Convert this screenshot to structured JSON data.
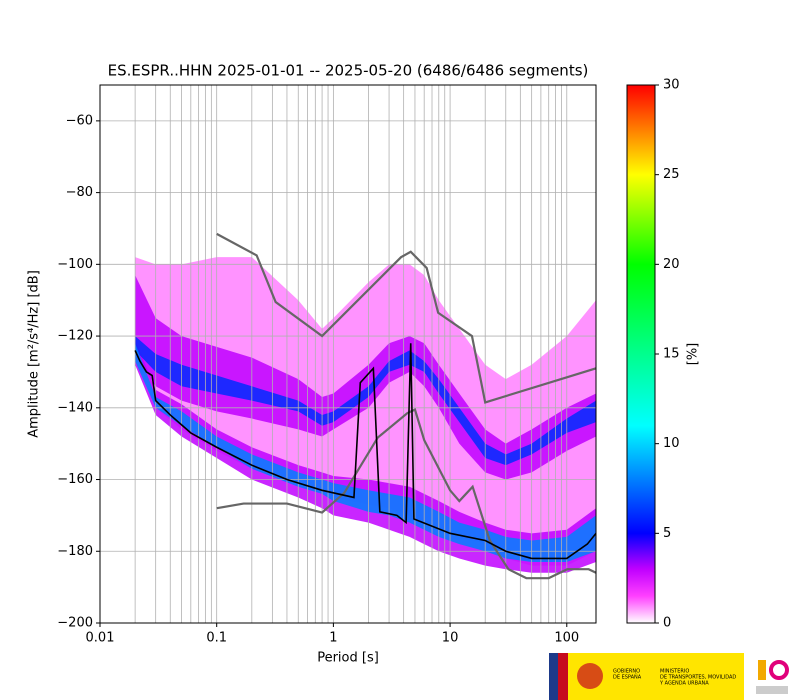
{
  "chart_data": {
    "type": "ppsd",
    "title": "ES.ESPR..HHN   2025-01-01 -- 2025-05-20  (6486/6486 segments)",
    "xlabel": "Period [s]",
    "ylabel": "Amplitude [m²/s⁴/Hz] [dB]",
    "colorbar_label": "[%]",
    "xscale": "log",
    "xlim": [
      0.01,
      178
    ],
    "xticks": [
      0.01,
      0.1,
      1,
      10,
      100
    ],
    "ylim": [
      -200,
      -50
    ],
    "yticks": [
      {
        "value": -200,
        "label": "−200"
      },
      {
        "value": -180,
        "label": "−180"
      },
      {
        "value": -160,
        "label": "−160"
      },
      {
        "value": -140,
        "label": "−140"
      },
      {
        "value": -120,
        "label": "−120"
      },
      {
        "value": -100,
        "label": "−100"
      },
      {
        "value": -80,
        "label": "−80"
      },
      {
        "value": -60,
        "label": "−60"
      }
    ],
    "grid": true,
    "minor_grid": true,
    "clim": [
      0,
      30
    ],
    "cticks": [
      0,
      5,
      10,
      15,
      20,
      25,
      30
    ],
    "colormap": [
      [
        0,
        "#ffffff"
      ],
      [
        1.5,
        "#ff40ff"
      ],
      [
        3,
        "#c000ff"
      ],
      [
        5,
        "#0000ff"
      ],
      [
        11,
        "#00ffff"
      ],
      [
        20,
        "#00ff00"
      ],
      [
        25,
        "#ffff00"
      ],
      [
        30,
        "#ff0000"
      ]
    ],
    "density_x": [
      0.02,
      0.03,
      0.05,
      0.1,
      0.2,
      0.5,
      0.8,
      1,
      2,
      3,
      4.5,
      6,
      8,
      12,
      20,
      30,
      50,
      100,
      178
    ],
    "density_bands": [
      {
        "value": 1,
        "high": [
          -98,
          -100,
          -100,
          -98,
          -98,
          -110,
          -118,
          -115,
          -105,
          -100,
          -100,
          -103,
          -110,
          -118,
          -128,
          -132,
          -128,
          -120,
          -110
        ],
        "low": [
          -125,
          -140,
          -146,
          -152,
          -157,
          -161,
          -163,
          -165,
          -167,
          -168,
          -170,
          -172,
          -174,
          -176,
          -178,
          -182,
          -184,
          -184,
          -180
        ]
      },
      {
        "value": 3,
        "high": [
          -103,
          -115,
          -120,
          -123,
          -126,
          -132,
          -137,
          -136,
          -128,
          -122,
          -120,
          -122,
          -128,
          -136,
          -146,
          -150,
          -146,
          -140,
          -136
        ],
        "low": [
          -125,
          -134,
          -138,
          -141,
          -143,
          -146,
          -148,
          -146,
          -140,
          -133,
          -130,
          -134,
          -140,
          -150,
          -158,
          -160,
          -158,
          -152,
          -148
        ]
      },
      {
        "value": 3,
        "high": [
          -121,
          -135,
          -139,
          -146,
          -151,
          -156,
          -158,
          -159,
          -160,
          -161,
          -162,
          -164,
          -166,
          -169,
          -172,
          -174,
          -175,
          -174,
          -168
        ],
        "low": [
          -128,
          -142,
          -148,
          -154,
          -160,
          -165,
          -168,
          -170,
          -172,
          -174,
          -176,
          -178,
          -180,
          -182,
          -184,
          -185,
          -186,
          -186,
          -183
        ]
      },
      {
        "value": 6,
        "high": [
          -120,
          -125,
          -128,
          -131,
          -134,
          -138,
          -142,
          -141,
          -134,
          -127,
          -124,
          -127,
          -132,
          -140,
          -150,
          -153,
          -150,
          -143,
          -138
        ],
        "low": [
          -124,
          -130,
          -134,
          -136,
          -138,
          -141,
          -145,
          -144,
          -137,
          -130,
          -128,
          -130,
          -136,
          -144,
          -154,
          -156,
          -153,
          -147,
          -144
        ]
      },
      {
        "value": 8,
        "high": [
          -122,
          -137,
          -141,
          -148,
          -153,
          -158,
          -160,
          -161,
          -163,
          -164,
          -165,
          -167,
          -169,
          -172,
          -174,
          -176,
          -177,
          -176,
          -170
        ],
        "low": [
          -127,
          -140,
          -145,
          -151,
          -157,
          -162,
          -164,
          -166,
          -169,
          -170,
          -172,
          -174,
          -176,
          -178,
          -180,
          -182,
          -183,
          -183,
          -180
        ]
      }
    ],
    "series": [
      {
        "color": "#666666",
        "x": [
          0.1,
          0.22,
          0.32,
          0.8,
          3.8,
          4.6,
          6.3,
          7.9,
          15.4,
          20,
          178
        ],
        "values": [
          -91.5,
          -97.5,
          -110.5,
          -120,
          -98,
          -96.5,
          -101,
          -113.5,
          -120,
          -138.5,
          -129
        ]
      },
      {
        "color": "#666666",
        "x": [
          0.1,
          0.17,
          0.4,
          0.8,
          1.24,
          2.4,
          4.3,
          5.0,
          6.0,
          10,
          12,
          15.6,
          21.9,
          31.6,
          45,
          70,
          101,
          154,
          178
        ],
        "values": [
          -168,
          -166.7,
          -166.7,
          -169.2,
          -163.7,
          -148.3,
          -141.5,
          -140.5,
          -149,
          -163,
          -166,
          -162,
          -177,
          -185,
          -187.5,
          -187.5,
          -185,
          -185,
          -186
        ]
      },
      {
        "color": "#000000",
        "x": [
          0.02,
          0.022,
          0.025,
          0.028,
          0.03,
          0.04,
          0.06,
          0.1,
          0.2,
          0.4,
          0.8,
          1.5,
          1.7,
          2.2,
          2.5,
          3.5,
          4.2,
          4.6,
          4.9,
          10,
          20,
          30,
          50,
          100,
          150,
          178
        ],
        "values": [
          -124,
          -127,
          -130,
          -131,
          -138,
          -142,
          -147,
          -151,
          -156,
          -160,
          -163,
          -165,
          -133,
          -129,
          -169,
          -170,
          -172,
          -122,
          -171,
          -175,
          -177,
          -180,
          -182,
          -182,
          -178,
          -175
        ]
      }
    ],
    "footer": {
      "gov": [
        "GOBIERNO",
        "DE ESPAÑA"
      ],
      "ministry": [
        "MINISTERIO",
        "DE TRANSPORTES, MOVILIDAD",
        "Y AGENDA URBANA"
      ]
    }
  }
}
